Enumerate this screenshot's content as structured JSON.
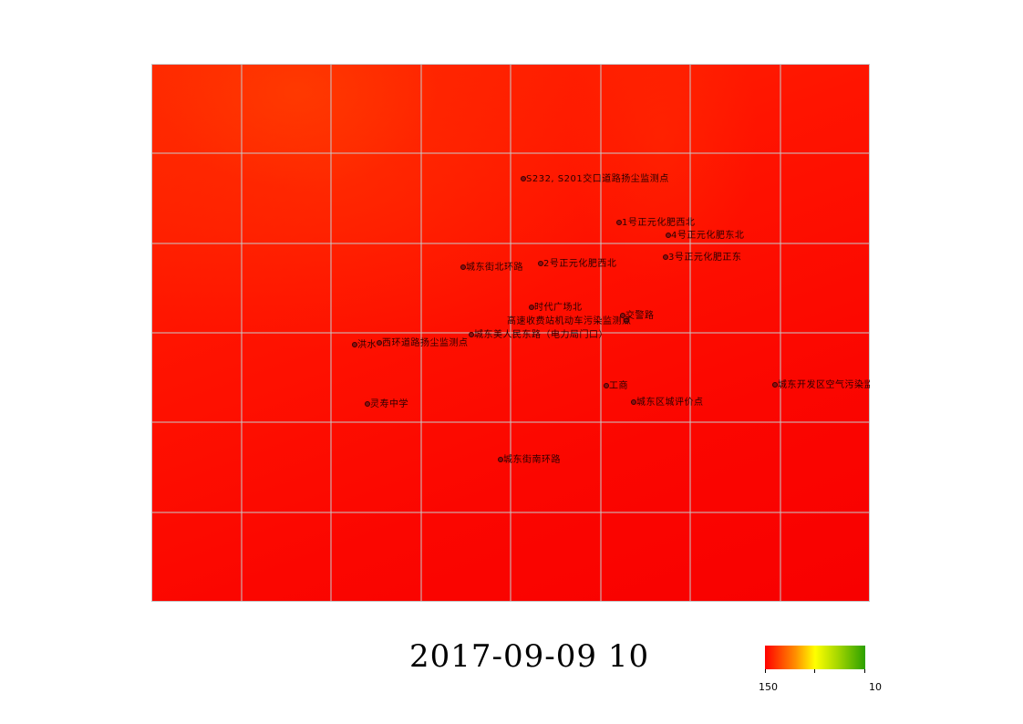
{
  "map": {
    "stations": [
      {
        "name": "S232, S201交口道路扬尘监测点"
      },
      {
        "name": "1号正元化肥西北"
      },
      {
        "name": "4号正元化肥东北"
      },
      {
        "name": "2号正元化肥西北"
      },
      {
        "name": "3号正元化肥正东"
      },
      {
        "name": "城东街北环路"
      },
      {
        "name": "时代广场北"
      },
      {
        "name": "交警路"
      },
      {
        "name": "高速收费站机动车污染监测点"
      },
      {
        "name": "城东美人民东路（电力局门口）"
      },
      {
        "name": "西环道路扬尘监测点"
      },
      {
        "name": "洪水"
      },
      {
        "name": "工商"
      },
      {
        "name": "城东开发区空气污染监测点"
      },
      {
        "name": "城东区城评价点"
      },
      {
        "name": "灵寿中学"
      },
      {
        "name": "城东街南环路"
      }
    ]
  },
  "timestamp": "2017-09-09 10",
  "legend": {
    "min_label": "150",
    "max_label": "10",
    "colors": [
      "#ff0000",
      "#ff8c00",
      "#ffff00",
      "#2ca000"
    ]
  }
}
